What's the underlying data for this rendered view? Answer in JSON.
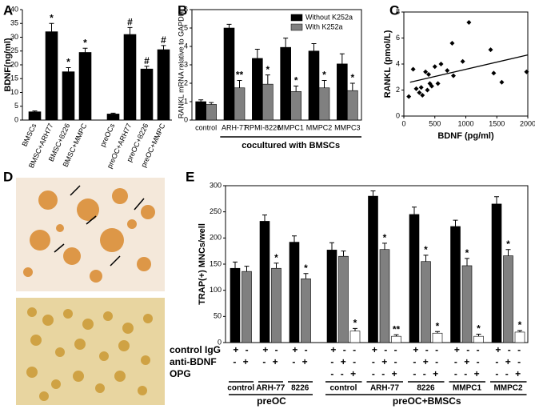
{
  "chart_data": [
    {
      "panel": "A",
      "type": "bar",
      "ylabel": "BDNF(ng/ml)",
      "color": "#000000",
      "categories": [
        "BMSCs",
        "BMSC+ARH77",
        "BMSC+8226",
        "BMSC+MMPC",
        "preOCs",
        "preOC+ARH77",
        "preOC+8226",
        "preOC+MMPC"
      ],
      "values": [
        3,
        32,
        17.5,
        24.5,
        2.2,
        31,
        18.5,
        25.5
      ],
      "errors": [
        0.3,
        3,
        1.5,
        1.5,
        0.3,
        2.5,
        1,
        1.5
      ],
      "annotations": [
        null,
        "*",
        "*",
        "*",
        null,
        "#",
        "#",
        "#"
      ],
      "ylim": [
        0,
        40
      ],
      "yticks": [
        0,
        5,
        10,
        15,
        20,
        25,
        30,
        35,
        40
      ]
    },
    {
      "panel": "B",
      "type": "bar",
      "ylabel": "RANKL mRNA relative to GAPDH",
      "xlabel": "cocultured with BMSCs",
      "categories": [
        "control",
        "ARH-77",
        "RPMI-8226",
        "MMPC1",
        "MMPC2",
        "MMPC3"
      ],
      "series": [
        {
          "name": "Without K252a",
          "color": "#000000",
          "values": [
            1.0,
            5.0,
            3.35,
            3.95,
            3.75,
            3.05
          ],
          "errors": [
            0.1,
            0.2,
            0.5,
            0.5,
            0.4,
            0.55
          ],
          "annotations": [
            null,
            null,
            null,
            null,
            null,
            null
          ]
        },
        {
          "name": "With K252a",
          "color": "#808080",
          "values": [
            0.85,
            1.75,
            1.95,
            1.55,
            1.75,
            1.6
          ],
          "errors": [
            0.1,
            0.4,
            0.5,
            0.3,
            0.4,
            0.4
          ],
          "annotations": [
            null,
            "**",
            "*",
            "*",
            "*",
            "*"
          ]
        }
      ],
      "legend": "upper right",
      "ylim": [
        0,
        6
      ],
      "yticks": [
        0,
        1,
        2,
        3,
        4,
        5,
        6
      ]
    },
    {
      "panel": "C",
      "type": "scatter",
      "ylabel": "RANKL (pmol/L)",
      "xlabel": "BDNF (pg/ml)",
      "color": "#000000",
      "x": [
        80,
        150,
        200,
        250,
        280,
        300,
        350,
        380,
        400,
        420,
        450,
        500,
        550,
        600,
        700,
        780,
        800,
        950,
        1050,
        1400,
        1450,
        1580,
        1980
      ],
      "y": [
        1.5,
        3.6,
        2.1,
        1.8,
        2.2,
        1.6,
        3.4,
        2.0,
        3.2,
        2.5,
        2.3,
        3.8,
        2.5,
        4.0,
        3.5,
        5.6,
        3.1,
        4.2,
        7.2,
        5.1,
        3.3,
        2.6,
        3.4
      ],
      "trendline": {
        "x": [
          100,
          2000
        ],
        "y": [
          2.6,
          4.7
        ]
      },
      "xlim": [
        0,
        2000
      ],
      "xticks": [
        0,
        500,
        1000,
        1500,
        2000
      ],
      "ylim": [
        0,
        8
      ],
      "yticks": [
        0,
        2,
        4,
        6,
        8
      ]
    },
    {
      "panel": "E",
      "type": "bar",
      "ylabel": "TRAP(+) MNCs/well",
      "groups": [
        {
          "label": "preOC",
          "categories": [
            "control",
            "ARH-77",
            "8226"
          ]
        },
        {
          "label": "preOC+BMSCs",
          "categories": [
            "control",
            "ARH-77",
            "8226",
            "MMPC1",
            "MMPC2"
          ]
        }
      ],
      "series": [
        {
          "name": "control IgG",
          "color": "#000000",
          "values": [
            142,
            232,
            192,
            177,
            280,
            245,
            222,
            265
          ],
          "errors": [
            12,
            12,
            12,
            14,
            10,
            14,
            12,
            14
          ],
          "annotations": [
            null,
            null,
            null,
            null,
            null,
            null,
            null,
            null
          ],
          "signs": [
            "+ -",
            "+ -",
            "+ -",
            "+ - -",
            "+ - -",
            "+ - -",
            "+ - -",
            "+ - -"
          ]
        },
        {
          "name": "anti-BDNF",
          "color": "#808080",
          "values": [
            136,
            142,
            122,
            165,
            178,
            155,
            147,
            166
          ],
          "errors": [
            10,
            10,
            10,
            10,
            12,
            12,
            14,
            12
          ],
          "annotations": [
            null,
            "*",
            "*",
            null,
            "*",
            "*",
            "*",
            "*"
          ],
          "signs": [
            "- +",
            "- +",
            "- +",
            "- + -",
            "- + -",
            "- + -",
            "- + -",
            "- + -"
          ]
        },
        {
          "name": "OPG",
          "color": "#ffffff",
          "values": [
            null,
            null,
            null,
            22,
            12,
            18,
            12,
            20
          ],
          "errors": [
            null,
            null,
            null,
            5,
            3,
            3,
            4,
            3
          ],
          "annotations": [
            null,
            null,
            null,
            "*",
            "**",
            "*",
            "*",
            "*"
          ],
          "signs": [
            null,
            null,
            null,
            "- - +",
            "- - +",
            "- - +",
            "- - +",
            "- - +"
          ]
        }
      ],
      "ylim": [
        0,
        300
      ],
      "yticks": [
        0,
        50,
        100,
        150,
        200,
        250,
        300
      ]
    }
  ],
  "images": {
    "panel": "D"
  }
}
